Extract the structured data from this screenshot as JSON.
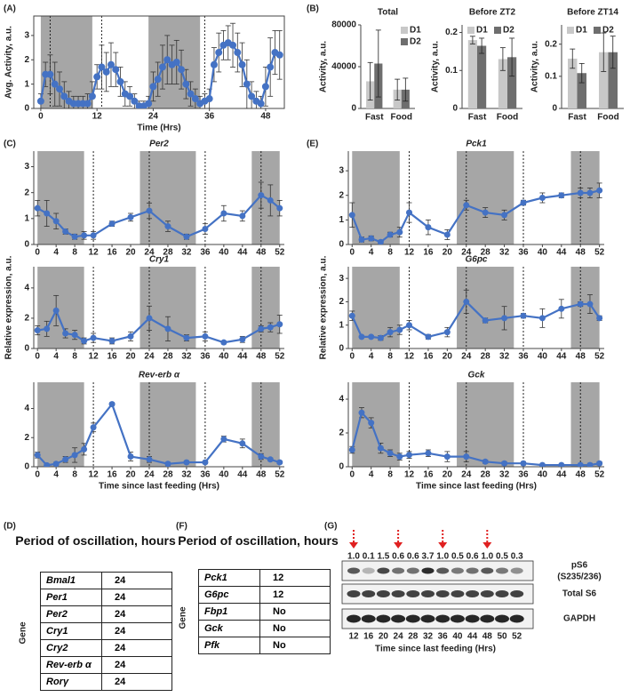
{
  "panel_labels": [
    "(A)",
    "(B)",
    "(C)",
    "(D)",
    "(E)",
    "(F)",
    "(G)"
  ],
  "chart_data": [
    {
      "type": "line",
      "xlabel": "Time (Hrs)",
      "ylabel": "Avg. Activity, a.u.",
      "x": [
        0,
        1,
        2,
        3,
        4,
        5,
        6,
        7,
        8,
        9,
        10,
        11,
        12,
        13,
        14,
        15,
        16,
        17,
        18,
        19,
        20,
        21,
        22,
        23,
        24,
        25,
        26,
        27,
        28,
        29,
        30,
        31,
        32,
        33,
        34,
        35,
        36,
        37,
        38,
        39,
        40,
        41,
        42,
        43,
        44,
        45,
        46,
        47,
        48,
        49,
        50,
        51
      ],
      "series": [
        {
          "color": "#4472c4",
          "values": [
            0.3,
            1.4,
            1.4,
            1.0,
            0.8,
            0.5,
            0.3,
            0.2,
            0.2,
            0.2,
            0.2,
            0.5,
            1.3,
            1.7,
            1.5,
            1.8,
            1.6,
            1.1,
            0.6,
            0.5,
            0.3,
            0.1,
            0.1,
            0.2,
            0.9,
            1.2,
            1.7,
            2.0,
            1.8,
            1.9,
            1.6,
            1.0,
            0.6,
            0.4,
            0.2,
            0.3,
            0.4,
            1.8,
            2.3,
            2.6,
            2.7,
            2.6,
            2.3,
            1.8,
            1.0,
            0.5,
            0.3,
            0.2,
            0.9,
            1.7,
            2.3,
            2.2
          ],
          "errors": [
            0.3,
            0.5,
            0.8,
            0.9,
            0.7,
            0.6,
            0.4,
            0.3,
            0.3,
            0.3,
            0.4,
            0.6,
            0.5,
            0.9,
            0.8,
            0.9,
            0.7,
            0.6,
            0.5,
            0.4,
            0.3,
            0.2,
            0.2,
            0.3,
            0.6,
            0.7,
            0.9,
            1.0,
            0.8,
            0.9,
            0.8,
            0.6,
            0.5,
            0.4,
            0.3,
            0.3,
            0.4,
            0.7,
            0.8,
            0.6,
            0.7,
            0.9,
            0.8,
            0.9,
            1.0,
            0.6,
            0.4,
            0.3,
            0.8,
            1.2,
            0.9,
            1.0
          ]
        }
      ],
      "xlim": [
        -1.5,
        52
      ],
      "ylim": [
        0,
        3.8
      ],
      "xticks": [
        0,
        12,
        24,
        36,
        48
      ],
      "yticks": [
        0,
        1,
        2,
        3
      ],
      "shaded": [
        [
          0,
          11
        ],
        [
          23,
          34
        ]
      ],
      "dashed_lines": [
        2,
        13,
        35
      ]
    },
    {
      "type": "bar",
      "title": "Total",
      "ylabel": "Activity, a.u.",
      "categories": [
        "Fast",
        "Food"
      ],
      "series": [
        {
          "name": "D1",
          "color": "#c8c8c8",
          "values": [
            26000,
            18000
          ],
          "errors": [
            18000,
            10000
          ]
        },
        {
          "name": "D2",
          "color": "#6e6e6e",
          "values": [
            43000,
            18000
          ],
          "errors": [
            32000,
            11000
          ]
        }
      ],
      "ylim": [
        0,
        80000
      ],
      "yticks": [
        0,
        40000,
        80000
      ],
      "legend": "top-right"
    },
    {
      "type": "bar",
      "title": "Before ZT2",
      "ylabel": "Activity, a.u.",
      "categories": [
        "Fast",
        "Food"
      ],
      "series": [
        {
          "name": "D1",
          "color": "#c8c8c8",
          "values": [
            0.18,
            0.13
          ],
          "errors": [
            0.01,
            0.03
          ]
        },
        {
          "name": "D2",
          "color": "#6e6e6e",
          "values": [
            0.165,
            0.135
          ],
          "errors": [
            0.02,
            0.05
          ]
        }
      ],
      "ylim": [
        0,
        0.22
      ],
      "yticks": [
        0,
        0.1,
        0.2
      ],
      "legend": "top"
    },
    {
      "type": "bar",
      "title": "Before ZT14",
      "ylabel": "Activity, a.u.",
      "categories": [
        "Fast",
        "Food"
      ],
      "series": [
        {
          "name": "D1",
          "color": "#c8c8c8",
          "values": [
            0.155,
            0.175
          ],
          "errors": [
            0.03,
            0.06
          ]
        },
        {
          "name": "D2",
          "color": "#6e6e6e",
          "values": [
            0.11,
            0.175
          ],
          "errors": [
            0.03,
            0.05
          ]
        }
      ],
      "ylim": [
        0,
        0.26
      ],
      "yticks": [
        0,
        0.1,
        0.2
      ],
      "legend": "top"
    },
    {
      "type": "line",
      "title": "Per2",
      "x": [
        0,
        2,
        4,
        6,
        8,
        10,
        12,
        16,
        20,
        24,
        28,
        32,
        36,
        40,
        44,
        48,
        50,
        52
      ],
      "series": [
        {
          "color": "#4472c4",
          "values": [
            1.4,
            1.2,
            0.9,
            0.5,
            0.3,
            0.35,
            0.35,
            0.8,
            1.05,
            1.3,
            0.7,
            0.3,
            0.6,
            1.2,
            1.1,
            1.9,
            1.7,
            1.4
          ],
          "errors": [
            0.3,
            0.5,
            0.3,
            0.1,
            0.1,
            0.15,
            0.15,
            0.1,
            0.15,
            0.3,
            0.2,
            0.1,
            0.2,
            0.3,
            0.2,
            0.5,
            0.6,
            0.3
          ]
        }
      ],
      "xlim": [
        -0.8,
        53
      ],
      "ylim": [
        0,
        3.6
      ],
      "xticks": [
        0,
        4,
        8,
        12,
        16,
        20,
        24,
        28,
        32,
        36,
        40,
        44,
        48,
        52
      ],
      "yticks": [
        0,
        1,
        2,
        3
      ],
      "shaded": [
        [
          0,
          10
        ],
        [
          22,
          34
        ],
        [
          46,
          52
        ]
      ],
      "dashed_lines": [
        12,
        24,
        36,
        48
      ]
    },
    {
      "type": "line",
      "title": "Cry1",
      "ylabel": "Relative expression, a.u.",
      "x": [
        0,
        2,
        4,
        6,
        8,
        10,
        12,
        16,
        20,
        24,
        28,
        32,
        36,
        40,
        44,
        48,
        50,
        52
      ],
      "series": [
        {
          "color": "#4472c4",
          "values": [
            1.2,
            1.3,
            2.5,
            1.0,
            0.9,
            0.5,
            0.7,
            0.5,
            0.8,
            2.0,
            1.3,
            0.7,
            0.8,
            0.4,
            0.6,
            1.3,
            1.4,
            1.6
          ],
          "errors": [
            0.3,
            0.5,
            1.0,
            0.3,
            0.3,
            0.2,
            0.3,
            0.2,
            0.3,
            0.8,
            0.8,
            0.2,
            0.3,
            0.1,
            0.2,
            0.2,
            0.3,
            0.6
          ]
        }
      ],
      "xlim": [
        -0.8,
        53
      ],
      "ylim": [
        0,
        5.4
      ],
      "xticks": [
        0,
        4,
        8,
        12,
        16,
        20,
        24,
        28,
        32,
        36,
        40,
        44,
        48,
        52
      ],
      "yticks": [
        0,
        2,
        4
      ],
      "shaded": [
        [
          0,
          10
        ],
        [
          22,
          34
        ],
        [
          46,
          52
        ]
      ],
      "dashed_lines": [
        12,
        24,
        36,
        48
      ]
    },
    {
      "type": "line",
      "title": "Rev-erb α",
      "xlabel": "Time since last feeding (Hrs)",
      "x": [
        0,
        2,
        4,
        6,
        8,
        10,
        12,
        16,
        20,
        24,
        28,
        32,
        36,
        40,
        44,
        48,
        50,
        52
      ],
      "series": [
        {
          "color": "#4472c4",
          "values": [
            0.8,
            0.1,
            0.2,
            0.5,
            0.8,
            1.2,
            2.7,
            4.3,
            0.7,
            0.5,
            0.2,
            0.3,
            0.3,
            1.9,
            1.6,
            0.7,
            0.5,
            0.3
          ],
          "errors": [
            0.2,
            0.1,
            0.1,
            0.2,
            0.5,
            0.4,
            0.3,
            0.1,
            0.3,
            0.2,
            0.1,
            0.1,
            0.1,
            0.2,
            0.3,
            0.2,
            0.1,
            0.1
          ]
        }
      ],
      "xlim": [
        -0.8,
        53
      ],
      "ylim": [
        0,
        5.8
      ],
      "xticks": [
        0,
        4,
        8,
        12,
        16,
        20,
        24,
        28,
        32,
        36,
        40,
        44,
        48,
        52
      ],
      "yticks": [
        0,
        2,
        4
      ],
      "shaded": [
        [
          0,
          10
        ],
        [
          22,
          34
        ],
        [
          46,
          52
        ]
      ],
      "dashed_lines": [
        12,
        24,
        36,
        48
      ]
    },
    {
      "type": "line",
      "title": "Pck1",
      "x": [
        0,
        2,
        4,
        6,
        8,
        10,
        12,
        16,
        20,
        24,
        28,
        32,
        36,
        40,
        44,
        48,
        50,
        52
      ],
      "series": [
        {
          "color": "#4472c4",
          "values": [
            1.2,
            0.2,
            0.25,
            0.1,
            0.4,
            0.5,
            1.3,
            0.7,
            0.4,
            1.6,
            1.3,
            1.2,
            1.7,
            1.9,
            2.0,
            2.1,
            2.1,
            2.2
          ],
          "errors": [
            0.5,
            0.1,
            0.1,
            0.05,
            0.1,
            0.2,
            0.4,
            0.3,
            0.2,
            0.2,
            0.2,
            0.2,
            0.1,
            0.2,
            0.1,
            0.2,
            0.2,
            0.3
          ]
        }
      ],
      "xlim": [
        -0.8,
        53
      ],
      "ylim": [
        0,
        3.8
      ],
      "xticks": [
        0,
        4,
        8,
        12,
        16,
        20,
        24,
        28,
        32,
        36,
        40,
        44,
        48,
        52
      ],
      "yticks": [
        0,
        1,
        2,
        3
      ],
      "shaded": [
        [
          0,
          10
        ],
        [
          22,
          34
        ],
        [
          46,
          52
        ]
      ],
      "dashed_lines": [
        12,
        24,
        36,
        48
      ]
    },
    {
      "type": "line",
      "title": "G6pc",
      "ylabel": "Relative expression, a.u.",
      "x": [
        0,
        2,
        4,
        6,
        8,
        10,
        12,
        16,
        20,
        24,
        28,
        32,
        36,
        40,
        44,
        48,
        50,
        52
      ],
      "series": [
        {
          "color": "#4472c4",
          "values": [
            1.4,
            0.5,
            0.5,
            0.45,
            0.7,
            0.8,
            1.0,
            0.5,
            0.7,
            2.0,
            1.2,
            1.3,
            1.4,
            1.3,
            1.7,
            1.9,
            1.9,
            1.3
          ],
          "errors": [
            0.2,
            0.05,
            0.05,
            0.1,
            0.2,
            0.2,
            0.2,
            0.1,
            0.2,
            0.5,
            0.1,
            0.5,
            0.1,
            0.4,
            0.4,
            0.1,
            0.4,
            0.1
          ]
        }
      ],
      "xlim": [
        -0.8,
        53
      ],
      "ylim": [
        0,
        3.5
      ],
      "xticks": [
        0,
        4,
        8,
        12,
        16,
        20,
        24,
        28,
        32,
        36,
        40,
        44,
        48,
        52
      ],
      "yticks": [
        0,
        1,
        2,
        3
      ],
      "shaded": [
        [
          0,
          10
        ],
        [
          22,
          34
        ],
        [
          46,
          52
        ]
      ],
      "dashed_lines": [
        12,
        24,
        36,
        48
      ]
    },
    {
      "type": "line",
      "title": "Gck",
      "xlabel": "Time since last feeding (Hrs)",
      "x": [
        0,
        2,
        4,
        6,
        8,
        10,
        12,
        16,
        20,
        24,
        28,
        32,
        36,
        40,
        44,
        48,
        50,
        52
      ],
      "series": [
        {
          "color": "#4472c4",
          "values": [
            1.0,
            3.2,
            2.6,
            1.1,
            0.8,
            0.6,
            0.7,
            0.8,
            0.6,
            0.6,
            0.3,
            0.2,
            0.2,
            0.1,
            0.1,
            0.1,
            0.1,
            0.2
          ],
          "errors": [
            0.2,
            0.3,
            0.3,
            0.3,
            0.2,
            0.2,
            0.2,
            0.2,
            0.3,
            0.3,
            0.1,
            0.1,
            0.1,
            0.05,
            0.05,
            0.05,
            0.1,
            0.1
          ]
        }
      ],
      "xlim": [
        -0.8,
        53
      ],
      "ylim": [
        0,
        5
      ],
      "xticks": [
        0,
        4,
        8,
        12,
        16,
        20,
        24,
        28,
        32,
        36,
        40,
        44,
        48,
        52
      ],
      "yticks": [
        0,
        2,
        4
      ],
      "shaded": [
        [
          0,
          10
        ],
        [
          22,
          34
        ],
        [
          46,
          52
        ]
      ],
      "dashed_lines": [
        12,
        24,
        36,
        48
      ]
    }
  ],
  "tables": [
    {
      "title": "Period of oscillation, hours",
      "side_label": "Gene",
      "rows": [
        [
          "Bmal1",
          "24"
        ],
        [
          "Per1",
          "24"
        ],
        [
          "Per2",
          "24"
        ],
        [
          "Cry1",
          "24"
        ],
        [
          "Cry2",
          "24"
        ],
        [
          "Rev-erb α",
          "24"
        ],
        [
          "Rorγ",
          "24"
        ]
      ]
    },
    {
      "title": "Period of oscillation, hours",
      "side_label": "Gene",
      "rows": [
        [
          "Pck1",
          "12"
        ],
        [
          "G6pc",
          "12"
        ],
        [
          "Fbp1",
          "No"
        ],
        [
          "Gck",
          "No"
        ],
        [
          "Pfk",
          "No"
        ]
      ]
    }
  ],
  "blot": {
    "lanes": [
      12,
      16,
      20,
      24,
      28,
      32,
      36,
      40,
      44,
      48,
      50,
      52
    ],
    "arrow_lanes": [
      12,
      24,
      36,
      48
    ],
    "ps6_ratio": {
      "values": [
        1.0,
        0.1,
        1.5,
        0.6,
        0.6,
        3.7,
        1.0,
        0.5,
        0.6,
        1.0,
        0.5,
        0.3
      ],
      "value_labels": [
        "1.0",
        "0.1",
        "1.5",
        "0.6",
        "0.6",
        "3.7",
        "1.0",
        "0.5",
        "0.6",
        "1.0",
        "0.5",
        "0.3"
      ]
    },
    "rows": [
      {
        "label": "pS6",
        "sublabel": "(S235/236)"
      },
      {
        "label": "Total S6"
      },
      {
        "label": "GAPDH"
      }
    ],
    "xlabel": "Time since last feeding (Hrs)"
  }
}
